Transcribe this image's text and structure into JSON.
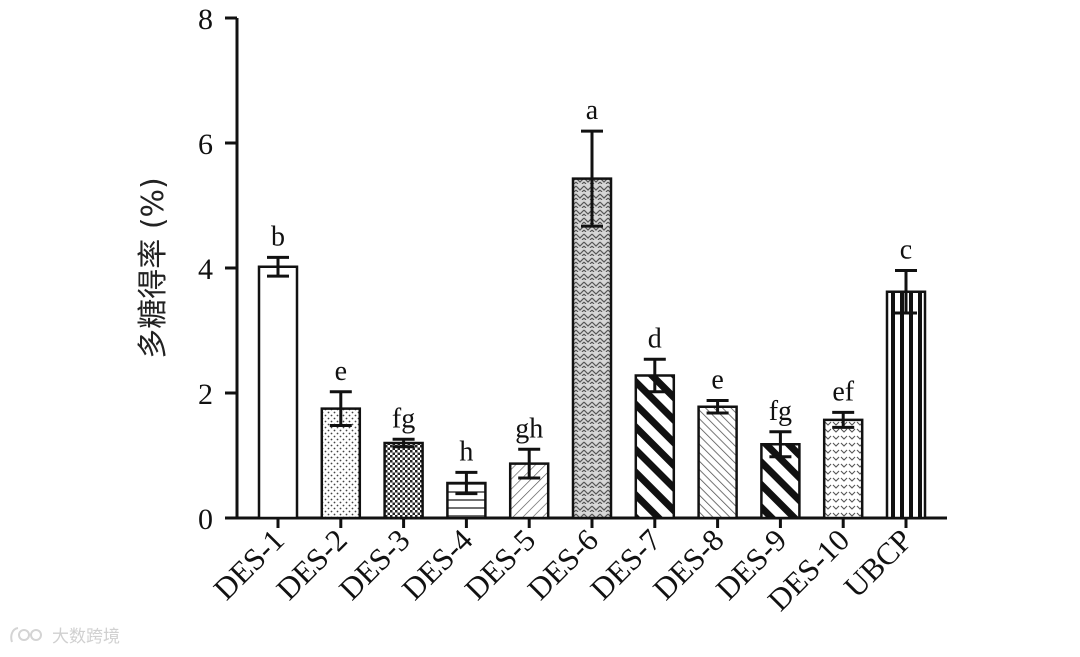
{
  "chart_data": {
    "type": "bar",
    "ylabel": "多糖得率 (%)",
    "ylim": [
      0,
      8
    ],
    "yticks": [
      0,
      2,
      4,
      6,
      8
    ],
    "grid": false,
    "categories": [
      "DES-1",
      "DES-2",
      "DES-3",
      "DES-4",
      "DES-5",
      "DES-6",
      "DES-7",
      "DES-8",
      "DES-9",
      "DES-10",
      "UBCP"
    ],
    "values": [
      4.02,
      1.75,
      1.2,
      0.56,
      0.87,
      5.43,
      2.28,
      1.78,
      1.18,
      1.57,
      3.62
    ],
    "errors": [
      0.15,
      0.27,
      0.06,
      0.17,
      0.23,
      0.76,
      0.26,
      0.1,
      0.2,
      0.12,
      0.34
    ],
    "significance": [
      "b",
      "e",
      "fg",
      "h",
      "gh",
      "a",
      "d",
      "e",
      "fg",
      "ef",
      "c"
    ],
    "patterns": [
      "white",
      "dots",
      "checker",
      "hlines",
      "diag-fine",
      "weave",
      "diag-thick",
      "diag-medium",
      "diag-thick",
      "chevron",
      "vlines"
    ]
  },
  "watermark": {
    "text": "大数跨境"
  }
}
